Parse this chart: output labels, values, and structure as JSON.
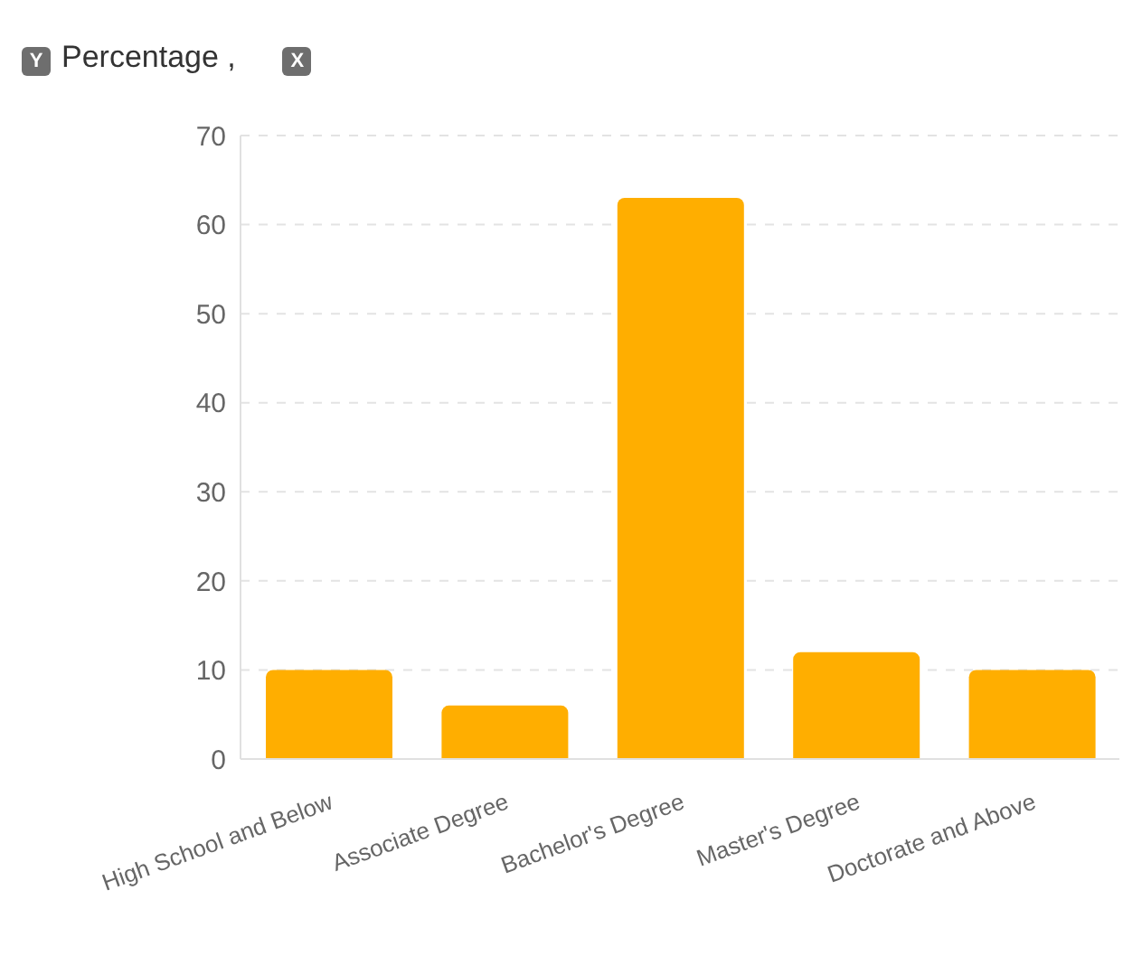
{
  "chart_data": {
    "type": "bar",
    "ylabel": "Percentage ,",
    "annotations": [
      "Y",
      "X"
    ],
    "categories": [
      "High School and Below",
      "Associate Degree",
      "Bachelor's Degree",
      "Master's Degree",
      "Doctorate and Above"
    ],
    "values": [
      10,
      6,
      63,
      12,
      10
    ],
    "color": "#ffae00",
    "ylim": [
      0,
      70
    ],
    "yticks": [
      0,
      10,
      20,
      30,
      40,
      50,
      60,
      70
    ],
    "grid": "y"
  }
}
